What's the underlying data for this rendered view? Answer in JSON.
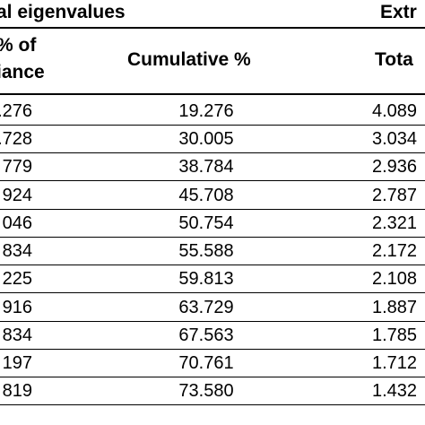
{
  "header": {
    "initial_eigenvalues_label": "al eigenvalues",
    "extraction_label": "Extr",
    "col_variance_line1": "% of",
    "col_variance_line2": "iance",
    "col_cumulative": "Cumulative %",
    "col_total": "Tota"
  },
  "rows": [
    {
      "variance": ".276",
      "cumulative": "19.276",
      "total": "4.089"
    },
    {
      "variance": ".728",
      "cumulative": "30.005",
      "total": "3.034"
    },
    {
      "variance": "779",
      "cumulative": "38.784",
      "total": "2.936"
    },
    {
      "variance": "924",
      "cumulative": "45.708",
      "total": "2.787"
    },
    {
      "variance": "046",
      "cumulative": "50.754",
      "total": "2.321"
    },
    {
      "variance": "834",
      "cumulative": "55.588",
      "total": "2.172"
    },
    {
      "variance": "225",
      "cumulative": "59.813",
      "total": "2.108"
    },
    {
      "variance": "916",
      "cumulative": "63.729",
      "total": "1.887"
    },
    {
      "variance": "834",
      "cumulative": "67.563",
      "total": "1.785"
    },
    {
      "variance": "197",
      "cumulative": "70.761",
      "total": "1.712"
    },
    {
      "variance": "819",
      "cumulative": "73.580",
      "total": "1.432"
    }
  ]
}
